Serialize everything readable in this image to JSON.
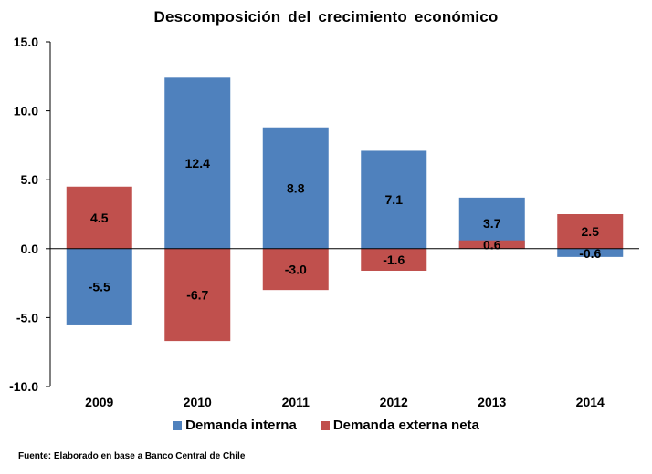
{
  "chart_data": {
    "type": "bar",
    "stacked": true,
    "title": "Descomposición del crecimiento económico",
    "categories": [
      "2009",
      "2010",
      "2011",
      "2012",
      "2013",
      "2014"
    ],
    "series": [
      {
        "name": "Demanda interna",
        "color": "#4f81bd",
        "values": [
          -5.5,
          12.4,
          8.8,
          7.1,
          3.7,
          -0.6
        ]
      },
      {
        "name": "Demanda externa neta",
        "color": "#c0504d",
        "values": [
          4.5,
          -6.7,
          -3.0,
          -1.6,
          0.6,
          2.5
        ]
      }
    ],
    "ylim": [
      -10.0,
      15.0
    ],
    "yticks": [
      "15.0",
      "10.0",
      "5.0",
      "0.0",
      "-5.0",
      "-10.0"
    ],
    "data_labels": [
      [
        "-5.5",
        "12.4",
        "8.8",
        "7.1",
        "3.7",
        "-0.6"
      ],
      [
        "4.5",
        "-6.7",
        "-3.0",
        "-1.6",
        "0.6",
        "2.5"
      ]
    ],
    "xlabel": "",
    "ylabel": "",
    "legend_position": "bottom"
  },
  "source": "Fuente: Elaborado  en base  a Banco Central de Chile"
}
